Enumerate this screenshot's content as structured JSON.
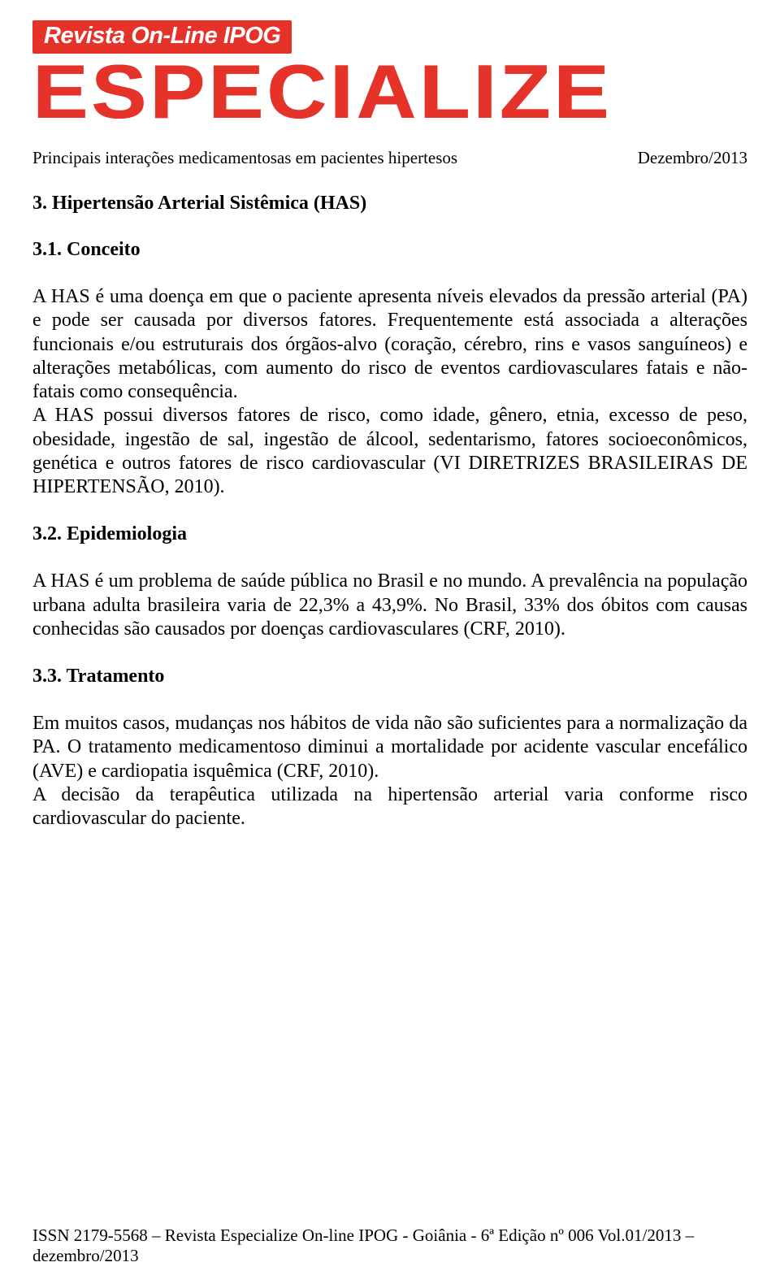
{
  "banner": {
    "top": "Revista On-Line IPOG",
    "main": "ESPECIALIZE"
  },
  "header": {
    "title_left": "Principais interações medicamentosas em pacientes hipertesos",
    "title_right": "Dezembro/2013"
  },
  "sections": {
    "s3": {
      "title": "3. Hipertensão Arterial Sistêmica (HAS)",
      "s31": {
        "title": "3.1. Conceito",
        "para1": "A HAS é uma doença em que o paciente apresenta níveis elevados da pressão arterial (PA) e pode ser causada por diversos fatores. Frequentemente está associada a alterações funcionais e/ou estruturais dos órgãos-alvo (coração, cérebro, rins e vasos sanguíneos) e alterações metabólicas, com aumento do risco de eventos cardiovasculares fatais e não-fatais como consequência.",
        "para2": "A HAS possui diversos fatores de risco, como idade, gênero, etnia, excesso de peso, obesidade, ingestão de sal, ingestão de álcool, sedentarismo, fatores socioeconômicos, genética e outros fatores de risco cardiovascular (VI DIRETRIZES BRASILEIRAS DE HIPERTENSÃO, 2010)."
      },
      "s32": {
        "title": "3.2. Epidemiologia",
        "para1": "A HAS é um problema de saúde pública no Brasil e no mundo. A prevalência na população urbana adulta brasileira varia de 22,3% a 43,9%. No Brasil, 33% dos óbitos com causas conhecidas são causados por doenças cardiovasculares (CRF, 2010)."
      },
      "s33": {
        "title": "3.3. Tratamento",
        "para1": "Em muitos casos, mudanças nos hábitos de vida não são suficientes para a normalização da PA. O tratamento medicamentoso diminui a mortalidade por acidente vascular encefálico (AVE) e cardiopatia isquêmica (CRF, 2010).",
        "para2": "A decisão da terapêutica utilizada na hipertensão arterial varia conforme risco cardiovascular do paciente."
      }
    }
  },
  "footer": {
    "text": "ISSN 2179-5568 – Revista Especialize On-line IPOG - Goiânia - 6ª Edição nº 006 Vol.01/2013 –dezembro/2013"
  },
  "colors": {
    "brand_red": "#e63329",
    "text": "#000000",
    "background": "#ffffff"
  },
  "typography": {
    "body_font": "Times New Roman",
    "banner_font": "Arial",
    "body_fontsize_pt": 18,
    "banner_main_fontsize_pt": 70
  }
}
